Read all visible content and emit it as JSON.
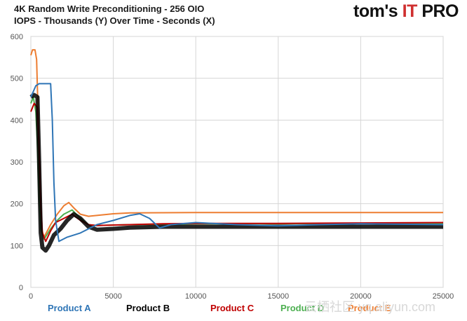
{
  "title": "4K Random Write Preconditioning - 256 OIO",
  "subtitle": "IOPS - Thousands (Y) Over Time - Seconds (X)",
  "logo": {
    "main": "tom's",
    "it": "IT",
    "pro": "PRO"
  },
  "watermark": "云栖社区 yq.aliyun.com",
  "chart_data": {
    "type": "line",
    "title": "4K Random Write Preconditioning - 256 OIO",
    "xlabel": "Seconds",
    "ylabel": "IOPS - Thousands",
    "xlim": [
      0,
      25000
    ],
    "ylim": [
      0,
      600
    ],
    "x_ticks": [
      "0",
      "5000",
      "10000",
      "15000",
      "20000",
      "25000"
    ],
    "y_ticks": [
      "0",
      "100",
      "200",
      "300",
      "400",
      "500",
      "600"
    ],
    "grid": true,
    "legend_position": "bottom",
    "series": [
      {
        "name": "Product A",
        "color": "#2e75b6",
        "points": [
          [
            0,
            455
          ],
          [
            300,
            482
          ],
          [
            500,
            487
          ],
          [
            1200,
            487
          ],
          [
            1300,
            400
          ],
          [
            1400,
            250
          ],
          [
            1500,
            160
          ],
          [
            1700,
            110
          ],
          [
            2200,
            120
          ],
          [
            3000,
            130
          ],
          [
            4000,
            150
          ],
          [
            5000,
            160
          ],
          [
            6000,
            172
          ],
          [
            6600,
            176
          ],
          [
            7200,
            165
          ],
          [
            7800,
            142
          ],
          [
            8500,
            150
          ],
          [
            10000,
            155
          ],
          [
            12500,
            150
          ],
          [
            15000,
            147
          ],
          [
            17500,
            150
          ],
          [
            20000,
            152
          ],
          [
            22500,
            151
          ],
          [
            25000,
            150
          ]
        ]
      },
      {
        "name": "Product B",
        "color": "#000000",
        "points": [
          [
            0,
            455
          ],
          [
            200,
            460
          ],
          [
            400,
            455
          ],
          [
            500,
            300
          ],
          [
            600,
            130
          ],
          [
            700,
            95
          ],
          [
            900,
            88
          ],
          [
            1100,
            100
          ],
          [
            1400,
            125
          ],
          [
            1800,
            140
          ],
          [
            2200,
            160
          ],
          [
            2600,
            175
          ],
          [
            3000,
            165
          ],
          [
            3500,
            145
          ],
          [
            4000,
            138
          ],
          [
            5000,
            140
          ],
          [
            6000,
            143
          ],
          [
            8000,
            145
          ],
          [
            10000,
            145
          ],
          [
            15000,
            145
          ],
          [
            20000,
            145
          ],
          [
            25000,
            145
          ]
        ]
      },
      {
        "name": "Product C",
        "color": "#c00000",
        "points": [
          [
            0,
            420
          ],
          [
            200,
            440
          ],
          [
            400,
            430
          ],
          [
            500,
            330
          ],
          [
            600,
            200
          ],
          [
            700,
            130
          ],
          [
            900,
            110
          ],
          [
            1200,
            135
          ],
          [
            1500,
            155
          ],
          [
            2000,
            165
          ],
          [
            2500,
            175
          ],
          [
            3000,
            160
          ],
          [
            3500,
            150
          ],
          [
            4000,
            148
          ],
          [
            6000,
            150
          ],
          [
            8000,
            152
          ],
          [
            10000,
            153
          ],
          [
            15000,
            153
          ],
          [
            20000,
            154
          ],
          [
            25000,
            155
          ]
        ]
      },
      {
        "name": "Product D",
        "color": "#4caf50",
        "points": [
          [
            0,
            440
          ],
          [
            150,
            455
          ],
          [
            300,
            420
          ],
          [
            400,
            340
          ],
          [
            500,
            220
          ],
          [
            600,
            140
          ],
          [
            800,
            115
          ],
          [
            1200,
            140
          ],
          [
            1600,
            160
          ],
          [
            2000,
            175
          ],
          [
            2500,
            185
          ],
          [
            3000,
            165
          ],
          [
            3500,
            150
          ],
          [
            4000,
            148
          ],
          [
            6000,
            150
          ],
          [
            10000,
            152
          ],
          [
            15000,
            152
          ],
          [
            20000,
            153
          ],
          [
            25000,
            153
          ]
        ]
      },
      {
        "name": "Product E",
        "color": "#ed7d31",
        "points": [
          [
            0,
            555
          ],
          [
            100,
            568
          ],
          [
            250,
            568
          ],
          [
            350,
            545
          ],
          [
            450,
            400
          ],
          [
            550,
            230
          ],
          [
            650,
            140
          ],
          [
            800,
            120
          ],
          [
            1200,
            150
          ],
          [
            1600,
            175
          ],
          [
            2000,
            195
          ],
          [
            2300,
            203
          ],
          [
            2600,
            190
          ],
          [
            3000,
            175
          ],
          [
            3500,
            170
          ],
          [
            4000,
            172
          ],
          [
            5000,
            176
          ],
          [
            6000,
            178
          ],
          [
            10000,
            179
          ],
          [
            15000,
            179
          ],
          [
            20000,
            179
          ],
          [
            25000,
            179
          ]
        ]
      }
    ]
  }
}
